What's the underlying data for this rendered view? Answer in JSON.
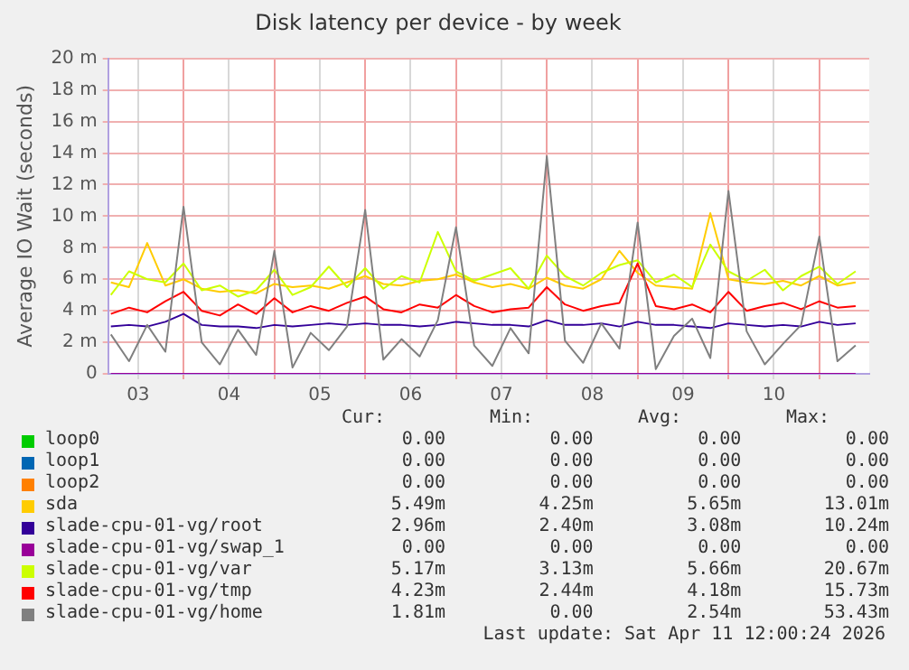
{
  "chart_data": {
    "type": "line",
    "title": "Disk latency per device - by week",
    "ylabel": "Average IO Wait (seconds)",
    "x": [
      3.2,
      3.4,
      3.6,
      3.8,
      4.0,
      4.2,
      4.4,
      4.6,
      4.8,
      5.0,
      5.2,
      5.4,
      5.6,
      5.8,
      6.0,
      6.2,
      6.4,
      6.6,
      6.8,
      7.0,
      7.2,
      7.4,
      7.6,
      7.8,
      8.0,
      8.2,
      8.4,
      8.6,
      8.8,
      9.0,
      9.2,
      9.4,
      9.6,
      9.8,
      10.0,
      10.2,
      10.4,
      10.6,
      10.8,
      11.0,
      11.2,
      11.4
    ],
    "xlim": [
      3.17,
      11.55
    ],
    "xticks": [
      {
        "value": 3.5,
        "label": "03"
      },
      {
        "value": 4,
        "label": null
      },
      {
        "value": 4.5,
        "label": "04"
      },
      {
        "value": 5,
        "label": null
      },
      {
        "value": 5.5,
        "label": "05"
      },
      {
        "value": 6,
        "label": null
      },
      {
        "value": 6.5,
        "label": "06"
      },
      {
        "value": 7,
        "label": null
      },
      {
        "value": 7.5,
        "label": "07"
      },
      {
        "value": 8,
        "label": null
      },
      {
        "value": 8.5,
        "label": "08"
      },
      {
        "value": 9,
        "label": null
      },
      {
        "value": 9.5,
        "label": "09"
      },
      {
        "value": 10,
        "label": null
      },
      {
        "value": 10.5,
        "label": "10"
      },
      {
        "value": 11,
        "label": null
      }
    ],
    "ylim": [
      0,
      20
    ],
    "yticks": [
      0,
      {
        "value": 2,
        "label": "2 m"
      },
      {
        "value": 4,
        "label": "4 m"
      },
      {
        "value": 6,
        "label": "6 m"
      },
      {
        "value": 8,
        "label": "8 m"
      },
      {
        "value": 10,
        "label": "10 m"
      },
      {
        "value": 12,
        "label": "12 m"
      },
      {
        "value": 14,
        "label": "14 m"
      },
      {
        "value": 16,
        "label": "16 m"
      },
      {
        "value": 18,
        "label": "18 m"
      },
      {
        "value": 20,
        "label": "20 m"
      }
    ],
    "grid": true,
    "legend": "bottom",
    "series": [
      {
        "name": "loop0",
        "color": "#00cc00",
        "values": [
          null,
          null,
          null,
          null,
          null,
          null,
          null,
          null,
          null,
          null,
          null,
          null,
          null,
          null,
          null,
          null,
          null,
          null,
          null,
          null,
          null,
          null,
          null,
          null,
          null,
          null,
          null,
          null,
          null,
          null,
          null,
          null,
          null,
          null,
          null,
          null,
          null,
          null,
          null,
          null,
          null,
          null
        ]
      },
      {
        "name": "loop1",
        "color": "#0066b3",
        "values": [
          null,
          null,
          null,
          null,
          null,
          null,
          null,
          null,
          null,
          null,
          null,
          null,
          null,
          null,
          null,
          null,
          null,
          null,
          null,
          null,
          null,
          null,
          null,
          null,
          null,
          null,
          null,
          null,
          null,
          null,
          null,
          null,
          null,
          null,
          null,
          null,
          null,
          null,
          null,
          null,
          null,
          null
        ]
      },
      {
        "name": "loop2",
        "color": "#ff8000",
        "values": [
          null,
          null,
          null,
          null,
          null,
          null,
          null,
          null,
          null,
          null,
          null,
          null,
          null,
          null,
          null,
          null,
          null,
          null,
          null,
          null,
          null,
          null,
          null,
          null,
          null,
          null,
          null,
          null,
          null,
          null,
          null,
          null,
          null,
          null,
          null,
          null,
          null,
          null,
          null,
          null,
          null,
          null
        ]
      },
      {
        "name": "sda",
        "color": "#ffcc00",
        "values": [
          5.8,
          5.5,
          8.3,
          5.6,
          6.0,
          5.4,
          5.2,
          5.3,
          5.1,
          5.7,
          5.5,
          5.6,
          5.4,
          5.8,
          6.2,
          5.7,
          5.6,
          5.9,
          6.0,
          6.3,
          5.8,
          5.5,
          5.7,
          5.4,
          6.1,
          5.6,
          5.4,
          6.0,
          7.8,
          6.4,
          5.6,
          5.5,
          5.4,
          10.2,
          6.0,
          5.8,
          5.7,
          5.9,
          5.6,
          6.2,
          5.6,
          5.8
        ]
      },
      {
        "name": "slade-cpu-01-vg/root",
        "color": "#330099",
        "values": [
          3.0,
          3.1,
          3.0,
          3.3,
          3.8,
          3.1,
          3.0,
          3.0,
          2.9,
          3.1,
          3.0,
          3.1,
          3.2,
          3.1,
          3.2,
          3.1,
          3.1,
          3.0,
          3.1,
          3.3,
          3.2,
          3.1,
          3.1,
          3.0,
          3.4,
          3.1,
          3.1,
          3.2,
          3.0,
          3.3,
          3.1,
          3.1,
          3.0,
          2.9,
          3.2,
          3.1,
          3.0,
          3.1,
          3.0,
          3.3,
          3.1,
          3.2
        ]
      },
      {
        "name": "slade-cpu-01-vg/swap_1",
        "color": "#990099",
        "values": [
          0,
          0,
          0,
          0,
          0,
          0,
          0,
          0,
          0,
          0,
          0,
          0,
          0,
          0,
          0,
          0,
          0,
          0,
          0,
          0,
          0,
          0,
          0,
          0,
          0,
          0,
          0,
          0,
          0,
          0,
          0,
          0,
          0,
          0,
          0,
          0,
          0,
          0,
          0,
          0,
          0,
          0
        ]
      },
      {
        "name": "slade-cpu-01-vg/var",
        "color": "#ccff00",
        "values": [
          5.0,
          6.5,
          6.0,
          5.8,
          7.0,
          5.3,
          5.6,
          4.9,
          5.3,
          6.6,
          5.0,
          5.5,
          6.8,
          5.5,
          6.7,
          5.4,
          6.2,
          5.8,
          9.0,
          6.5,
          5.9,
          6.3,
          6.7,
          5.4,
          7.5,
          6.2,
          5.6,
          6.4,
          6.9,
          7.2,
          5.8,
          6.3,
          5.5,
          8.2,
          6.5,
          5.9,
          6.6,
          5.3,
          6.2,
          6.8,
          5.7,
          6.5
        ]
      },
      {
        "name": "slade-cpu-01-vg/tmp",
        "color": "#ff0000",
        "values": [
          3.8,
          4.2,
          3.9,
          4.6,
          5.2,
          4.0,
          3.7,
          4.4,
          3.8,
          4.8,
          3.9,
          4.3,
          4.0,
          4.5,
          4.9,
          4.1,
          3.9,
          4.4,
          4.2,
          5.0,
          4.3,
          3.9,
          4.1,
          4.2,
          5.5,
          4.4,
          4.0,
          4.3,
          4.5,
          7.0,
          4.3,
          4.1,
          4.4,
          3.9,
          5.2,
          4.0,
          4.3,
          4.5,
          4.1,
          4.6,
          4.2,
          4.3
        ]
      },
      {
        "name": "slade-cpu-01-vg/home",
        "color": "#808080",
        "values": [
          2.5,
          0.8,
          3.1,
          1.4,
          10.6,
          2.0,
          0.6,
          2.8,
          1.2,
          7.8,
          0.4,
          2.6,
          1.5,
          3.0,
          10.4,
          0.9,
          2.2,
          1.1,
          3.4,
          9.3,
          1.8,
          0.5,
          2.9,
          1.3,
          13.8,
          2.1,
          0.7,
          3.2,
          1.6,
          9.6,
          0.3,
          2.4,
          3.5,
          1.0,
          11.6,
          2.7,
          0.6,
          1.9,
          3.1,
          8.7,
          0.8,
          1.8
        ]
      }
    ],
    "annotations": [
      "Cur:",
      "Min:",
      "Avg:",
      "Max:",
      "0.00",
      "0.00",
      "0.00",
      "0.00",
      "0.00",
      "0.00",
      "0.00",
      "0.00",
      "0.00",
      "0.00",
      "0.00",
      "0.00",
      "5.49m",
      "4.25m",
      "5.65m",
      "13.01m",
      "2.96m",
      "2.40m",
      "3.08m",
      "10.24m",
      "0.00",
      "0.00",
      "0.00",
      "0.00",
      "5.17m",
      "3.13m",
      "5.66m",
      "20.67m",
      "4.23m",
      "2.44m",
      "4.18m",
      "15.73m",
      "1.81m",
      "0.00",
      "2.54m",
      "53.43m",
      "Last update: Sat Apr 11 12:00:24 2026"
    ]
  }
}
